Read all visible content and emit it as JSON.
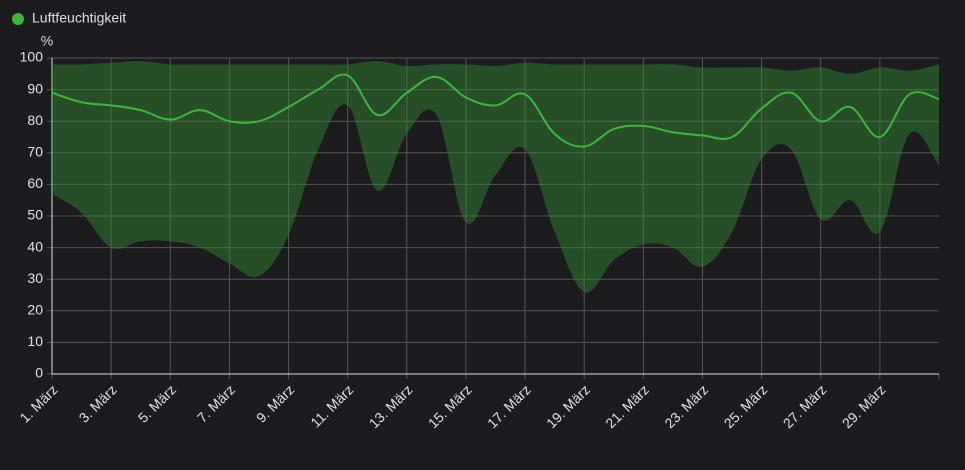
{
  "chart_data": {
    "type": "line",
    "y_unit": "%",
    "categories": [
      "1. März",
      null,
      "3. März",
      null,
      "5. März",
      null,
      "7. März",
      null,
      "9. März",
      null,
      "11. März",
      null,
      "13. März",
      null,
      "15. März",
      null,
      "17. März",
      null,
      "19. März",
      null,
      "21. März",
      null,
      "23. März",
      null,
      "25. März",
      null,
      "27. März",
      null,
      "29. März",
      null,
      null
    ],
    "series": [
      {
        "name": "Luftfeuchtigkeit",
        "color": "#3db53d",
        "band_color": "rgba(52,140,52,0.45)",
        "values": [
          89,
          86,
          85,
          83.5,
          80.5,
          83.5,
          80,
          80,
          84.5,
          90,
          94.5,
          82,
          89,
          94,
          87.5,
          85,
          88.5,
          76,
          72,
          77.5,
          78.5,
          76.5,
          75.5,
          75,
          84,
          89,
          80,
          84.5,
          75,
          88.5,
          87
        ],
        "min_values": [
          57,
          51,
          40,
          42,
          42,
          40,
          35,
          31,
          44,
          71,
          85,
          58,
          76,
          82,
          48,
          63,
          71,
          45,
          26,
          36,
          41,
          40,
          34,
          45,
          68,
          71,
          49,
          55,
          45,
          76,
          66
        ],
        "max_values": [
          98,
          98,
          98.5,
          99,
          98,
          98,
          98,
          98,
          98,
          98,
          98,
          99,
          97.5,
          98,
          98,
          97.5,
          98.5,
          98,
          98,
          98,
          98,
          98,
          97,
          97,
          97,
          96,
          97,
          95,
          97,
          96,
          98
        ]
      }
    ],
    "ylim": [
      0,
      100
    ],
    "yticks": [
      0,
      10,
      20,
      30,
      40,
      50,
      60,
      70,
      80,
      90,
      100
    ],
    "grid": true,
    "legend": "top-left"
  }
}
